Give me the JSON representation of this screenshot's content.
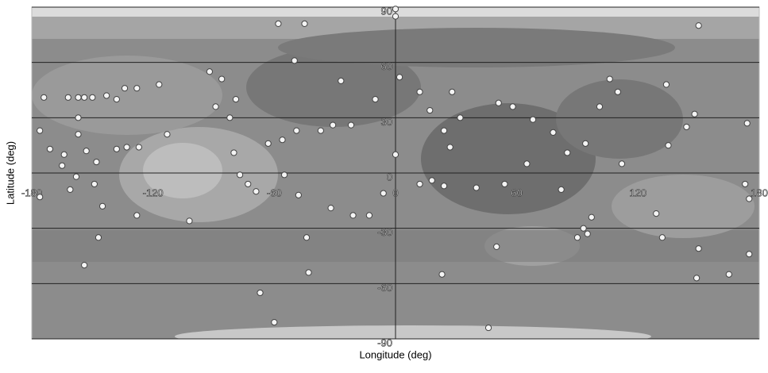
{
  "chart_data": {
    "type": "scatter",
    "xlabel": "Longitude (deg)",
    "ylabel": "Latitude (deg)",
    "xlim": [
      -180,
      180
    ],
    "ylim": [
      -90,
      90
    ],
    "xticks": [
      -180,
      -120,
      -60,
      0,
      60,
      120,
      180
    ],
    "yticks": [
      -90,
      -60,
      -30,
      0,
      30,
      60,
      90
    ],
    "grid": "y",
    "color": "#f4f4f4",
    "x": [
      -174,
      -162,
      -157,
      -154,
      -150,
      -143,
      -138,
      -134,
      -128,
      -117,
      -176,
      -157,
      -157,
      -171,
      -164,
      -153,
      -148,
      -165,
      -158,
      -161,
      -149,
      -176,
      -145,
      -127,
      -133,
      -138,
      -113,
      -92,
      -86,
      -89,
      -79,
      -82,
      -80,
      -77,
      -73,
      -69,
      -63,
      -56,
      -49,
      -55,
      -48,
      -58,
      -45,
      -50,
      -27,
      -31,
      -22,
      -37,
      -32,
      -21,
      -13,
      -6,
      0,
      0,
      2,
      -10,
      12,
      28,
      17,
      32,
      24,
      27,
      0,
      12,
      18,
      24,
      40,
      51,
      58,
      68,
      65,
      54,
      78,
      85,
      94,
      106,
      110,
      101,
      112,
      82,
      93,
      95,
      90,
      97,
      134,
      150,
      148,
      144,
      174,
      135,
      173,
      175,
      129,
      132,
      150,
      175,
      165,
      149,
      50,
      23,
      46,
      -44,
      -43,
      -67,
      -60,
      -102,
      -128,
      -147,
      -154
    ],
    "y": [
      41,
      41,
      41,
      41,
      41,
      42,
      40,
      46,
      46,
      48,
      23,
      30,
      21,
      13,
      10,
      12,
      6,
      4,
      -2,
      -9,
      -6,
      -13,
      -18,
      14,
      14,
      13,
      21,
      55,
      51,
      36,
      40,
      30,
      11,
      -1,
      -6,
      -10,
      16,
      18,
      23,
      -1,
      -12,
      81,
      81,
      61,
      50,
      26,
      26,
      23,
      -19,
      -23,
      -23,
      -11,
      89,
      85,
      52,
      40,
      44,
      44,
      34,
      30,
      23,
      14,
      10,
      -6,
      -4,
      -7,
      -8,
      38,
      36,
      29,
      5,
      -6,
      22,
      11,
      16,
      51,
      44,
      36,
      5,
      -9,
      -30,
      -33,
      -35,
      -24,
      48,
      80,
      32,
      25,
      27,
      15,
      -6,
      -14,
      -22,
      -35,
      -41,
      -44,
      -55,
      -57,
      -40,
      -55,
      -84,
      -35,
      -54,
      -65,
      -81,
      -26,
      -23,
      -35,
      -50
    ]
  }
}
